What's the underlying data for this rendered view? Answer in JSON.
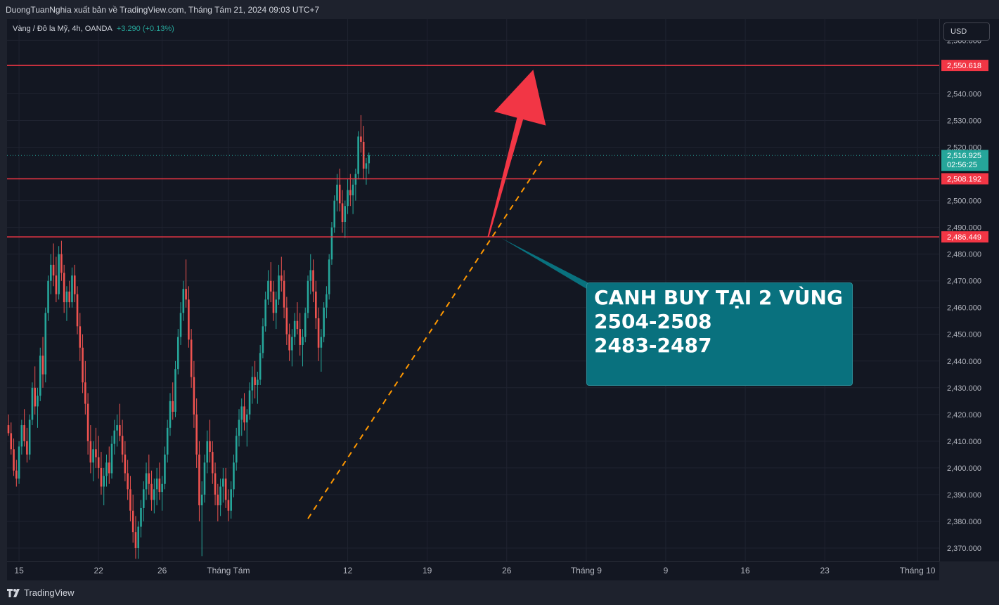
{
  "header": {
    "publisher_text": "DuongTuanNghia xuất bản về TradingView.com, Tháng Tám 21, 2024 09:03 UTC+7"
  },
  "legend": {
    "symbol": "Vàng / Đô la Mỹ, 4h, OANDA",
    "change": "+3.290 (+0.13%)"
  },
  "currency_button": "USD",
  "footer": {
    "brand": "TradingView"
  },
  "annotation": {
    "lines": [
      "CANH BUY TẠI 2 VÙNG",
      "2504-2508",
      "2483-2487"
    ]
  },
  "colors": {
    "up": "#26a69a",
    "down": "#ef5350",
    "level": "#f23645",
    "trend": "#ff9800",
    "annotation_bg": "#09717e",
    "arrow": "#f23645"
  },
  "chart_data": {
    "type": "candlestick",
    "ylim": [
      2365,
      2568
    ],
    "y_ticks": [
      {
        "value": 2560,
        "label": "2,560.000"
      },
      {
        "value": 2540,
        "label": "2,540.000"
      },
      {
        "value": 2530,
        "label": "2,530.000"
      },
      {
        "value": 2520,
        "label": "2,520.000"
      },
      {
        "value": 2500,
        "label": "2,500.000"
      },
      {
        "value": 2490,
        "label": "2,490.000"
      },
      {
        "value": 2480,
        "label": "2,480.000"
      },
      {
        "value": 2470,
        "label": "2,470.000"
      },
      {
        "value": 2460,
        "label": "2,460.000"
      },
      {
        "value": 2450,
        "label": "2,450.000"
      },
      {
        "value": 2440,
        "label": "2,440.000"
      },
      {
        "value": 2430,
        "label": "2,430.000"
      },
      {
        "value": 2420,
        "label": "2,420.000"
      },
      {
        "value": 2410,
        "label": "2,410.000"
      },
      {
        "value": 2400,
        "label": "2,400.000"
      },
      {
        "value": 2390,
        "label": "2,390.000"
      },
      {
        "value": 2380,
        "label": "2,380.000"
      },
      {
        "value": 2370,
        "label": "2,370.000"
      }
    ],
    "x_ticks": [
      {
        "index": 4,
        "label": "15"
      },
      {
        "index": 34,
        "label": "22"
      },
      {
        "index": 58,
        "label": "26"
      },
      {
        "index": 83,
        "label": "Tháng Tám"
      },
      {
        "index": 128,
        "label": "12"
      },
      {
        "index": 158,
        "label": "19"
      },
      {
        "index": 188,
        "label": "26"
      },
      {
        "index": 218,
        "label": "Tháng 9"
      },
      {
        "index": 248,
        "label": "9"
      },
      {
        "index": 278,
        "label": "16"
      },
      {
        "index": 308,
        "label": "23"
      },
      {
        "index": 343,
        "label": "Tháng 10"
      }
    ],
    "levels": [
      {
        "value": 2550.618,
        "label": "2,550.618"
      },
      {
        "value": 2508.192,
        "label": "2,508.192"
      },
      {
        "value": 2486.449,
        "label": "2,486.449"
      }
    ],
    "last_price": {
      "value": 2516.925,
      "label": "2,516.925",
      "countdown": "02:56:25"
    },
    "trendline": {
      "from": {
        "index": 113,
        "price": 2381
      },
      "to": {
        "index": 202,
        "price": 2516
      }
    },
    "arrow": {
      "from": {
        "index": 181,
        "price": 2486.4
      },
      "to": {
        "index": 198,
        "price": 2549
      }
    },
    "callout_anchor": {
      "index": 186,
      "price": 2486
    },
    "candles": [
      [
        2416,
        2420,
        2412,
        2413
      ],
      [
        2413,
        2417,
        2405,
        2407
      ],
      [
        2407,
        2411,
        2397,
        2399
      ],
      [
        2399,
        2403,
        2393,
        2396
      ],
      [
        2396,
        2410,
        2394,
        2408
      ],
      [
        2408,
        2418,
        2405,
        2416
      ],
      [
        2416,
        2422,
        2408,
        2410
      ],
      [
        2410,
        2415,
        2402,
        2405
      ],
      [
        2405,
        2420,
        2403,
        2418
      ],
      [
        2418,
        2432,
        2416,
        2430
      ],
      [
        2430,
        2438,
        2420,
        2423
      ],
      [
        2423,
        2430,
        2415,
        2427
      ],
      [
        2427,
        2445,
        2425,
        2442
      ],
      [
        2442,
        2449,
        2430,
        2435
      ],
      [
        2435,
        2460,
        2432,
        2458
      ],
      [
        2458,
        2472,
        2455,
        2470
      ],
      [
        2470,
        2480,
        2465,
        2476
      ],
      [
        2476,
        2484,
        2468,
        2472
      ],
      [
        2472,
        2479,
        2462,
        2465
      ],
      [
        2465,
        2483,
        2463,
        2480
      ],
      [
        2480,
        2485,
        2470,
        2473
      ],
      [
        2473,
        2476,
        2458,
        2462
      ],
      [
        2462,
        2468,
        2455,
        2466
      ],
      [
        2466,
        2470,
        2460,
        2462
      ],
      [
        2462,
        2475,
        2460,
        2472
      ],
      [
        2472,
        2476,
        2462,
        2465
      ],
      [
        2465,
        2468,
        2450,
        2453
      ],
      [
        2453,
        2458,
        2440,
        2445
      ],
      [
        2445,
        2450,
        2428,
        2432
      ],
      [
        2432,
        2440,
        2420,
        2424
      ],
      [
        2424,
        2428,
        2405,
        2410
      ],
      [
        2410,
        2416,
        2398,
        2402
      ],
      [
        2402,
        2410,
        2395,
        2407
      ],
      [
        2407,
        2415,
        2400,
        2404
      ],
      [
        2404,
        2412,
        2396,
        2400
      ],
      [
        2400,
        2406,
        2390,
        2393
      ],
      [
        2393,
        2400,
        2386,
        2397
      ],
      [
        2397,
        2405,
        2393,
        2402
      ],
      [
        2402,
        2408,
        2394,
        2398
      ],
      [
        2398,
        2412,
        2396,
        2409
      ],
      [
        2409,
        2418,
        2405,
        2414
      ],
      [
        2414,
        2420,
        2408,
        2416
      ],
      [
        2416,
        2424,
        2410,
        2412
      ],
      [
        2412,
        2418,
        2402,
        2405
      ],
      [
        2405,
        2410,
        2395,
        2398
      ],
      [
        2398,
        2403,
        2388,
        2392
      ],
      [
        2392,
        2397,
        2380,
        2384
      ],
      [
        2384,
        2390,
        2372,
        2376
      ],
      [
        2376,
        2382,
        2366,
        2370
      ],
      [
        2370,
        2380,
        2366,
        2378
      ],
      [
        2378,
        2388,
        2374,
        2385
      ],
      [
        2385,
        2395,
        2380,
        2392
      ],
      [
        2392,
        2402,
        2388,
        2398
      ],
      [
        2398,
        2405,
        2390,
        2394
      ],
      [
        2394,
        2399,
        2384,
        2388
      ],
      [
        2388,
        2396,
        2383,
        2392
      ],
      [
        2392,
        2400,
        2386,
        2396
      ],
      [
        2396,
        2402,
        2388,
        2391
      ],
      [
        2391,
        2397,
        2384,
        2394
      ],
      [
        2394,
        2408,
        2392,
        2405
      ],
      [
        2405,
        2418,
        2402,
        2415
      ],
      [
        2415,
        2428,
        2412,
        2425
      ],
      [
        2425,
        2432,
        2418,
        2421
      ],
      [
        2421,
        2440,
        2419,
        2437
      ],
      [
        2437,
        2452,
        2435,
        2449
      ],
      [
        2449,
        2462,
        2446,
        2458
      ],
      [
        2458,
        2470,
        2455,
        2467
      ],
      [
        2467,
        2478,
        2460,
        2463
      ],
      [
        2463,
        2468,
        2445,
        2448
      ],
      [
        2448,
        2452,
        2430,
        2434
      ],
      [
        2434,
        2440,
        2415,
        2420
      ],
      [
        2420,
        2426,
        2400,
        2405
      ],
      [
        2405,
        2410,
        2380,
        2386
      ],
      [
        2386,
        2395,
        2367,
        2390
      ],
      [
        2390,
        2405,
        2387,
        2402
      ],
      [
        2402,
        2414,
        2398,
        2410
      ],
      [
        2410,
        2418,
        2402,
        2406
      ],
      [
        2406,
        2410,
        2394,
        2398
      ],
      [
        2398,
        2402,
        2386,
        2390
      ],
      [
        2390,
        2394,
        2380,
        2386
      ],
      [
        2386,
        2396,
        2382,
        2393
      ],
      [
        2393,
        2400,
        2387,
        2396
      ],
      [
        2396,
        2400,
        2385,
        2388
      ],
      [
        2388,
        2392,
        2380,
        2384
      ],
      [
        2384,
        2395,
        2381,
        2392
      ],
      [
        2392,
        2405,
        2389,
        2402
      ],
      [
        2402,
        2415,
        2399,
        2412
      ],
      [
        2412,
        2422,
        2408,
        2418
      ],
      [
        2418,
        2426,
        2412,
        2423
      ],
      [
        2423,
        2428,
        2414,
        2417
      ],
      [
        2417,
        2422,
        2408,
        2420
      ],
      [
        2420,
        2432,
        2418,
        2429
      ],
      [
        2429,
        2438,
        2424,
        2434
      ],
      [
        2434,
        2440,
        2426,
        2431
      ],
      [
        2431,
        2436,
        2424,
        2433
      ],
      [
        2433,
        2446,
        2431,
        2443
      ],
      [
        2443,
        2456,
        2441,
        2453
      ],
      [
        2453,
        2466,
        2451,
        2463
      ],
      [
        2463,
        2474,
        2461,
        2470
      ],
      [
        2470,
        2477,
        2462,
        2466
      ],
      [
        2466,
        2470,
        2455,
        2458
      ],
      [
        2458,
        2466,
        2452,
        2463
      ],
      [
        2463,
        2476,
        2461,
        2472
      ],
      [
        2472,
        2479,
        2466,
        2470
      ],
      [
        2470,
        2474,
        2456,
        2460
      ],
      [
        2460,
        2464,
        2446,
        2450
      ],
      [
        2450,
        2454,
        2440,
        2444
      ],
      [
        2444,
        2452,
        2438,
        2449
      ],
      [
        2449,
        2458,
        2446,
        2455
      ],
      [
        2455,
        2462,
        2450,
        2452
      ],
      [
        2452,
        2458,
        2442,
        2446
      ],
      [
        2446,
        2452,
        2438,
        2449
      ],
      [
        2449,
        2460,
        2447,
        2458
      ],
      [
        2458,
        2472,
        2456,
        2470
      ],
      [
        2470,
        2480,
        2465,
        2474
      ],
      [
        2474,
        2478,
        2462,
        2466
      ],
      [
        2466,
        2470,
        2452,
        2456
      ],
      [
        2456,
        2460,
        2440,
        2445
      ],
      [
        2445,
        2452,
        2436,
        2449
      ],
      [
        2449,
        2462,
        2447,
        2460
      ],
      [
        2460,
        2468,
        2456,
        2465
      ],
      [
        2465,
        2480,
        2463,
        2478
      ],
      [
        2478,
        2492,
        2476,
        2490
      ],
      [
        2490,
        2502,
        2488,
        2500
      ],
      [
        2500,
        2510,
        2496,
        2506
      ],
      [
        2506,
        2512,
        2496,
        2499
      ],
      [
        2499,
        2504,
        2488,
        2492
      ],
      [
        2492,
        2500,
        2486,
        2498
      ],
      [
        2498,
        2508,
        2495,
        2504
      ],
      [
        2504,
        2510,
        2498,
        2502
      ],
      [
        2502,
        2508,
        2495,
        2506
      ],
      [
        2506,
        2512,
        2500,
        2510
      ],
      [
        2510,
        2526,
        2508,
        2524
      ],
      [
        2524,
        2532,
        2518,
        2522
      ],
      [
        2522,
        2528,
        2508,
        2512
      ],
      [
        2512,
        2516,
        2506,
        2514
      ],
      [
        2514,
        2518,
        2510,
        2517
      ]
    ]
  }
}
